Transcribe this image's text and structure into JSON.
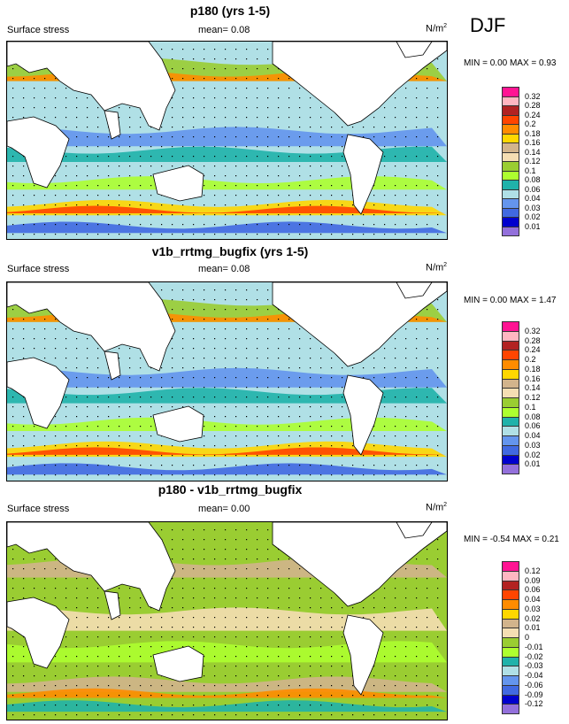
{
  "season": "DJF",
  "panels": [
    {
      "title": "p180 (yrs 1-5)",
      "variable": "Surface stress",
      "mean": "mean=  0.08",
      "units": "N/m",
      "units_exp": "2",
      "minmax": "MIN =  0.00 MAX =  0.93",
      "levels": [
        "0.32",
        "0.28",
        "0.24",
        "0.2",
        "0.18",
        "0.16",
        "0.14",
        "0.12",
        "0.1",
        "0.08",
        "0.06",
        "0.04",
        "0.03",
        "0.02",
        "0.01"
      ],
      "colors": [
        "#ff1493",
        "#ffb6c1",
        "#b22222",
        "#ff4500",
        "#ff8c00",
        "#ffd700",
        "#d2b48c",
        "#f5deb3",
        "#9acd32",
        "#adff2f",
        "#20b2aa",
        "#b0e0e6",
        "#6495ed",
        "#4169e1",
        "#0000cd",
        "#9370db"
      ]
    },
    {
      "title": "v1b_rrtmg_bugfix (yrs 1-5)",
      "variable": "Surface stress",
      "mean": "mean=  0.08",
      "units": "N/m",
      "units_exp": "2",
      "minmax": "MIN =  0.00 MAX =  1.47",
      "levels": [
        "0.32",
        "0.28",
        "0.24",
        "0.2",
        "0.18",
        "0.16",
        "0.14",
        "0.12",
        "0.1",
        "0.08",
        "0.06",
        "0.04",
        "0.03",
        "0.02",
        "0.01"
      ],
      "colors": [
        "#ff1493",
        "#ffb6c1",
        "#b22222",
        "#ff4500",
        "#ff8c00",
        "#ffd700",
        "#d2b48c",
        "#f5deb3",
        "#9acd32",
        "#adff2f",
        "#20b2aa",
        "#b0e0e6",
        "#6495ed",
        "#4169e1",
        "#0000cd",
        "#9370db"
      ]
    },
    {
      "title": "p180 - v1b_rrtmg_bugfix",
      "variable": "Surface stress",
      "mean": "mean=  0.00",
      "units": "N/m",
      "units_exp": "2",
      "minmax": "MIN = -0.54 MAX =  0.21",
      "levels": [
        "0.12",
        "0.09",
        "0.06",
        "0.04",
        "0.03",
        "0.02",
        "0.01",
        "0",
        "-0.01",
        "-0.02",
        "-0.03",
        "-0.04",
        "-0.06",
        "-0.09",
        "-0.12"
      ],
      "colors": [
        "#ff1493",
        "#ffb6c1",
        "#b22222",
        "#ff4500",
        "#ff8c00",
        "#ffd700",
        "#d2b48c",
        "#f5deb3",
        "#9acd32",
        "#adff2f",
        "#20b2aa",
        "#b0e0e6",
        "#6495ed",
        "#4169e1",
        "#0000cd",
        "#9370db"
      ]
    }
  ]
}
